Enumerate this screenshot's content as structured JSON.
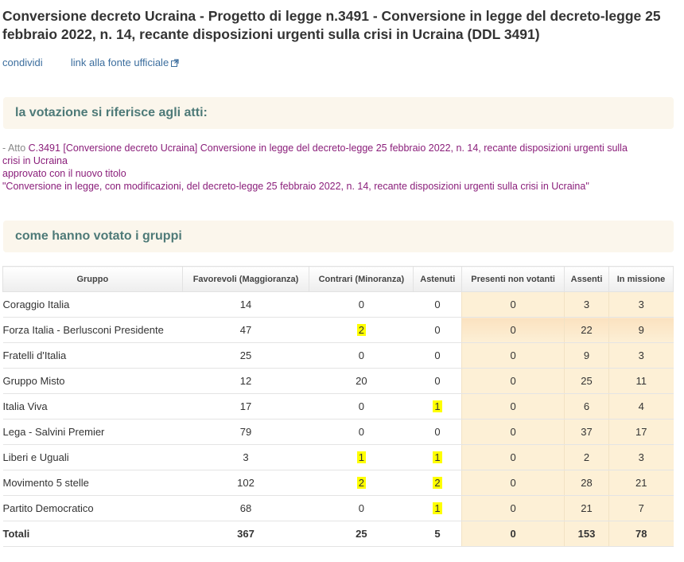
{
  "title": "Conversione decreto Ucraina - Progetto di legge n.3491 - Conversione in legge del decreto-legge 25 febbraio 2022, n. 14, recante disposizioni urgenti sulla crisi in Ucraina (DDL 3491)",
  "links": {
    "share": "condividi",
    "official_source": "link alla fonte ufficiale",
    "official_source_icon": "external-link-icon"
  },
  "acts_section": {
    "heading": "la votazione si riferisce agli atti:",
    "prefix": "- Atto ",
    "act_text": "C.3491 [Conversione decreto Ucraina] Conversione in legge del decreto-legge 25 febbraio 2022, n. 14, recante disposizioni urgenti sulla crisi in Ucraina",
    "approved_note": "approvato con il nuovo titolo",
    "new_title": "\"Conversione in legge, con modificazioni, del decreto-legge 25 febbraio 2022, n. 14, recante disposizioni urgenti sulla crisi in Ucraina\""
  },
  "groups_section": {
    "heading": "come hanno votato i gruppi"
  },
  "table": {
    "headers": {
      "group": "Gruppo",
      "favor": "Favorevoli (Maggioranza)",
      "against": "Contrari (Minoranza)",
      "abstain": "Astenuti",
      "present_not_voting": "Presenti non votanti",
      "absent": "Assenti",
      "on_mission": "In missione"
    },
    "highlight_color": "#ffff00",
    "rows": [
      {
        "group": "Coraggio Italia",
        "favor": "14",
        "against": "0",
        "abstain": "0",
        "present_not_voting": "0",
        "absent": "3",
        "on_mission": "3",
        "against_hl": false,
        "abstain_hl": false
      },
      {
        "group": "Forza Italia - Berlusconi Presidente",
        "favor": "47",
        "against": "2",
        "abstain": "0",
        "present_not_voting": "0",
        "absent": "22",
        "on_mission": "9",
        "against_hl": true,
        "abstain_hl": false
      },
      {
        "group": "Fratelli d'Italia",
        "favor": "25",
        "against": "0",
        "abstain": "0",
        "present_not_voting": "0",
        "absent": "9",
        "on_mission": "3",
        "against_hl": false,
        "abstain_hl": false
      },
      {
        "group": "Gruppo Misto",
        "favor": "12",
        "against": "20",
        "abstain": "0",
        "present_not_voting": "0",
        "absent": "25",
        "on_mission": "11",
        "against_hl": false,
        "abstain_hl": false
      },
      {
        "group": "Italia Viva",
        "favor": "17",
        "against": "0",
        "abstain": "1",
        "present_not_voting": "0",
        "absent": "6",
        "on_mission": "4",
        "against_hl": false,
        "abstain_hl": true
      },
      {
        "group": "Lega - Salvini Premier",
        "favor": "79",
        "against": "0",
        "abstain": "0",
        "present_not_voting": "0",
        "absent": "37",
        "on_mission": "17",
        "against_hl": false,
        "abstain_hl": false
      },
      {
        "group": "Liberi e Uguali",
        "favor": "3",
        "against": "1",
        "abstain": "1",
        "present_not_voting": "0",
        "absent": "2",
        "on_mission": "3",
        "against_hl": true,
        "abstain_hl": true
      },
      {
        "group": "Movimento 5 stelle",
        "favor": "102",
        "against": "2",
        "abstain": "2",
        "present_not_voting": "0",
        "absent": "28",
        "on_mission": "21",
        "against_hl": true,
        "abstain_hl": true
      },
      {
        "group": "Partito Democratico",
        "favor": "68",
        "against": "0",
        "abstain": "1",
        "present_not_voting": "0",
        "absent": "21",
        "on_mission": "7",
        "against_hl": false,
        "abstain_hl": true
      }
    ],
    "totals": {
      "label": "Totali",
      "favor": "367",
      "against": "25",
      "abstain": "5",
      "present_not_voting": "0",
      "absent": "153",
      "on_mission": "78"
    }
  }
}
